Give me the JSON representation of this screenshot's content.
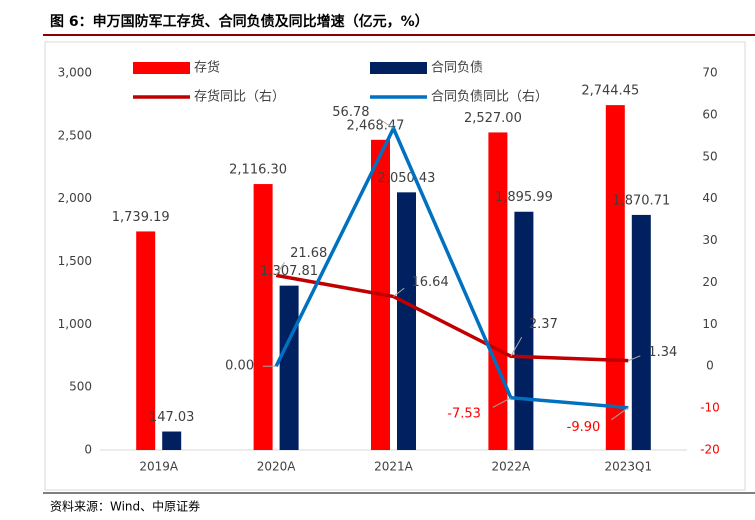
{
  "chart_data": {
    "type": "bar_line",
    "title": "图 6：申万国防军工存货、合同负债及同比增速（亿元，%）",
    "source": "资料来源：Wind、中原证券",
    "categories": [
      "2019A",
      "2020A",
      "2021A",
      "2022A",
      "2023Q1"
    ],
    "series": [
      {
        "name": "存货",
        "type": "bar",
        "color": "#ff0000",
        "values": [
          1739.19,
          2116.3,
          2468.47,
          2527.0,
          2744.45
        ],
        "value_labels": [
          "1,739.19",
          "2,116.30",
          "2,468.47",
          "2,527.00",
          "2,744.45"
        ]
      },
      {
        "name": "合同负债",
        "type": "bar",
        "color": "#002060",
        "values": [
          147.03,
          1307.81,
          2050.43,
          1895.99,
          1870.71
        ],
        "value_labels": [
          "147.03",
          "1,307.81",
          "2,050.43",
          "1,895.99",
          "1,870.71"
        ]
      },
      {
        "name": "存货同比（右）",
        "type": "line",
        "axis": "y2",
        "color": "#c00000",
        "values": [
          null,
          21.68,
          16.64,
          2.37,
          1.34
        ],
        "value_labels": [
          null,
          "21.68",
          "16.64",
          "2.37",
          "1.34"
        ]
      },
      {
        "name": "合同负债同比（右）",
        "type": "line",
        "axis": "y2",
        "color": "#0070c0",
        "values": [
          null,
          0.0,
          56.78,
          -7.53,
          -9.9
        ],
        "value_labels": [
          null,
          "0.00",
          "56.78",
          "-7.53",
          "-9.90"
        ]
      }
    ],
    "ylim": [
      0,
      3000
    ],
    "yticks": [
      0,
      500,
      {
        "value": 1000,
        "label": "1,000"
      },
      {
        "value": 1500,
        "label": "1,500"
      },
      {
        "value": 2000,
        "label": "2,000"
      },
      {
        "value": 2500,
        "label": "2,500"
      },
      {
        "value": 3000,
        "label": "3,000"
      }
    ],
    "y2lim": [
      -20,
      70
    ],
    "y2ticks": [
      -20,
      -10,
      0,
      10,
      20,
      30,
      40,
      50,
      60,
      70
    ],
    "legend": "top",
    "grid": false
  }
}
